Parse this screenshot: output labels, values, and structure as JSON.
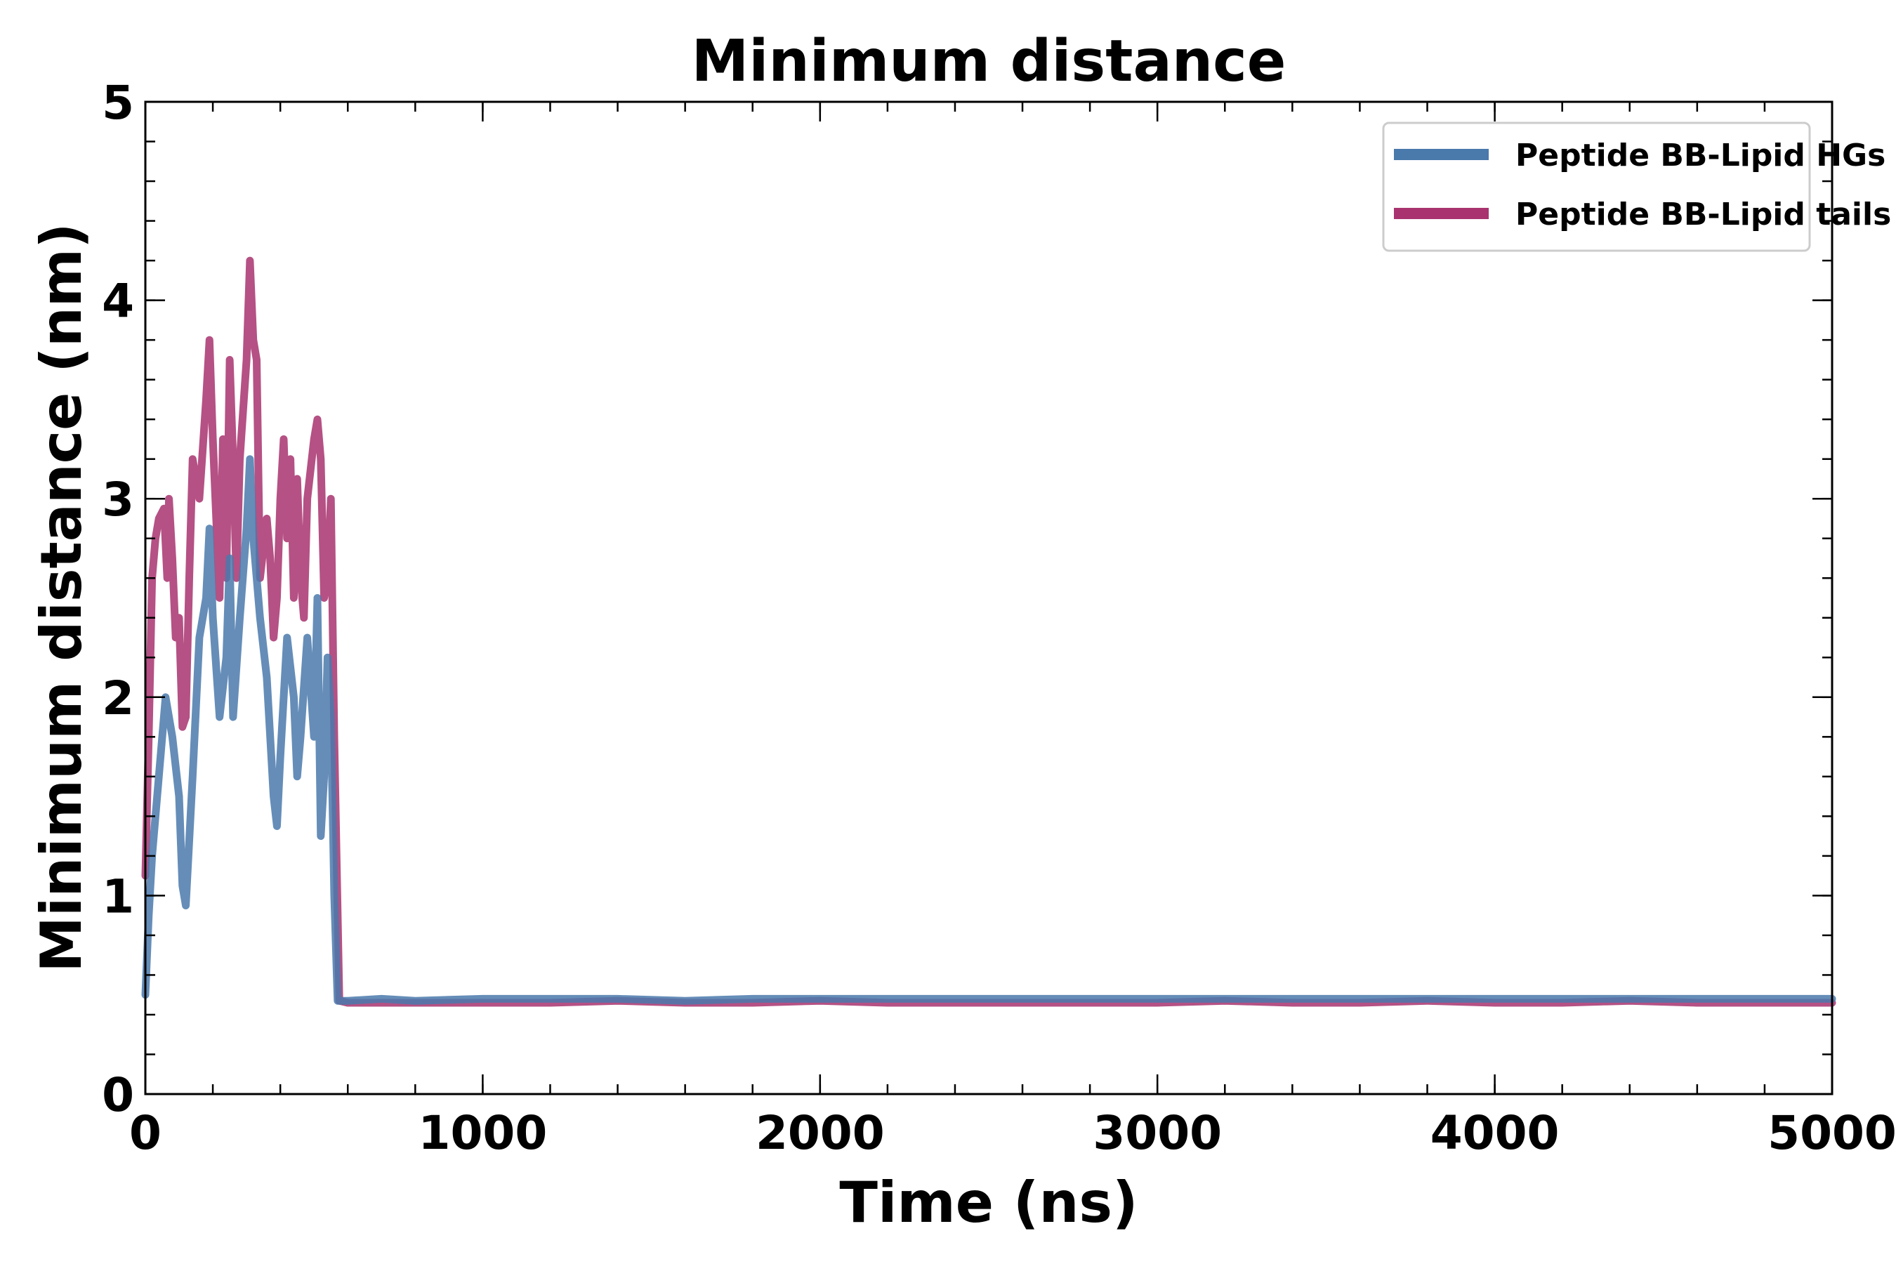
{
  "chart_data": {
    "type": "line",
    "title": "Minimum distance",
    "xlabel": "Time (ns)",
    "ylabel": "Minimum distance (nm)",
    "xlim": [
      0,
      5000
    ],
    "ylim": [
      0,
      5
    ],
    "xticks": [
      0,
      1000,
      2000,
      3000,
      4000,
      5000
    ],
    "yticks": [
      0,
      1,
      2,
      3,
      4,
      5
    ],
    "x_minor_step": 200,
    "y_minor_step": 0.2,
    "grid": false,
    "legend_position": "top-right",
    "series": [
      {
        "name": "Peptide BB-Lipid HGs",
        "color": "#4a79ab",
        "points": [
          [
            0,
            0.5
          ],
          [
            10,
            0.9
          ],
          [
            20,
            1.2
          ],
          [
            40,
            1.6
          ],
          [
            60,
            2.0
          ],
          [
            80,
            1.8
          ],
          [
            100,
            1.5
          ],
          [
            110,
            1.05
          ],
          [
            120,
            0.95
          ],
          [
            140,
            1.6
          ],
          [
            160,
            2.3
          ],
          [
            180,
            2.5
          ],
          [
            190,
            2.85
          ],
          [
            200,
            2.4
          ],
          [
            220,
            1.9
          ],
          [
            240,
            2.2
          ],
          [
            250,
            2.7
          ],
          [
            260,
            1.9
          ],
          [
            280,
            2.4
          ],
          [
            300,
            2.85
          ],
          [
            310,
            3.2
          ],
          [
            320,
            2.8
          ],
          [
            340,
            2.4
          ],
          [
            360,
            2.1
          ],
          [
            380,
            1.5
          ],
          [
            390,
            1.35
          ],
          [
            400,
            1.7
          ],
          [
            420,
            2.3
          ],
          [
            440,
            2.0
          ],
          [
            450,
            1.6
          ],
          [
            460,
            1.8
          ],
          [
            480,
            2.3
          ],
          [
            500,
            1.8
          ],
          [
            510,
            2.5
          ],
          [
            520,
            1.3
          ],
          [
            530,
            1.6
          ],
          [
            540,
            2.2
          ],
          [
            550,
            1.9
          ],
          [
            560,
            1.0
          ],
          [
            570,
            0.47
          ],
          [
            600,
            0.47
          ],
          [
            700,
            0.48
          ],
          [
            800,
            0.47
          ],
          [
            1000,
            0.48
          ],
          [
            1200,
            0.48
          ],
          [
            1400,
            0.48
          ],
          [
            1600,
            0.47
          ],
          [
            1800,
            0.48
          ],
          [
            2000,
            0.48
          ],
          [
            2200,
            0.48
          ],
          [
            2400,
            0.48
          ],
          [
            2600,
            0.48
          ],
          [
            2800,
            0.48
          ],
          [
            3000,
            0.48
          ],
          [
            3200,
            0.48
          ],
          [
            3400,
            0.48
          ],
          [
            3600,
            0.48
          ],
          [
            3800,
            0.48
          ],
          [
            4000,
            0.48
          ],
          [
            4200,
            0.48
          ],
          [
            4400,
            0.48
          ],
          [
            4600,
            0.48
          ],
          [
            4800,
            0.48
          ],
          [
            5000,
            0.48
          ]
        ]
      },
      {
        "name": "Peptide BB-Lipid tails",
        "color": "#a8336f",
        "points": [
          [
            0,
            1.1
          ],
          [
            10,
            1.8
          ],
          [
            20,
            2.6
          ],
          [
            30,
            2.8
          ],
          [
            40,
            2.9
          ],
          [
            55,
            2.95
          ],
          [
            65,
            2.6
          ],
          [
            70,
            3.0
          ],
          [
            80,
            2.7
          ],
          [
            90,
            2.3
          ],
          [
            100,
            2.4
          ],
          [
            110,
            1.85
          ],
          [
            120,
            1.9
          ],
          [
            130,
            2.6
          ],
          [
            140,
            3.2
          ],
          [
            160,
            3.0
          ],
          [
            180,
            3.5
          ],
          [
            190,
            3.8
          ],
          [
            200,
            3.3
          ],
          [
            210,
            2.9
          ],
          [
            220,
            2.5
          ],
          [
            230,
            3.3
          ],
          [
            240,
            2.6
          ],
          [
            250,
            3.7
          ],
          [
            260,
            3.2
          ],
          [
            270,
            2.6
          ],
          [
            280,
            3.2
          ],
          [
            300,
            3.7
          ],
          [
            310,
            4.2
          ],
          [
            320,
            3.8
          ],
          [
            330,
            3.7
          ],
          [
            340,
            2.6
          ],
          [
            360,
            2.9
          ],
          [
            370,
            2.7
          ],
          [
            380,
            2.3
          ],
          [
            390,
            2.5
          ],
          [
            400,
            3.0
          ],
          [
            410,
            3.3
          ],
          [
            420,
            2.8
          ],
          [
            430,
            3.2
          ],
          [
            440,
            2.5
          ],
          [
            450,
            3.1
          ],
          [
            460,
            2.6
          ],
          [
            470,
            2.4
          ],
          [
            480,
            3.0
          ],
          [
            500,
            3.3
          ],
          [
            510,
            3.4
          ],
          [
            520,
            3.2
          ],
          [
            530,
            2.5
          ],
          [
            540,
            2.6
          ],
          [
            550,
            3.0
          ],
          [
            560,
            1.8
          ],
          [
            575,
            0.47
          ],
          [
            600,
            0.46
          ],
          [
            700,
            0.46
          ],
          [
            800,
            0.46
          ],
          [
            1000,
            0.46
          ],
          [
            1200,
            0.46
          ],
          [
            1400,
            0.47
          ],
          [
            1600,
            0.46
          ],
          [
            1800,
            0.46
          ],
          [
            2000,
            0.47
          ],
          [
            2200,
            0.46
          ],
          [
            2400,
            0.46
          ],
          [
            2600,
            0.46
          ],
          [
            2800,
            0.46
          ],
          [
            3000,
            0.46
          ],
          [
            3200,
            0.47
          ],
          [
            3400,
            0.46
          ],
          [
            3600,
            0.46
          ],
          [
            3800,
            0.47
          ],
          [
            4000,
            0.46
          ],
          [
            4200,
            0.46
          ],
          [
            4400,
            0.47
          ],
          [
            4600,
            0.46
          ],
          [
            4800,
            0.46
          ],
          [
            5000,
            0.46
          ]
        ]
      }
    ]
  }
}
